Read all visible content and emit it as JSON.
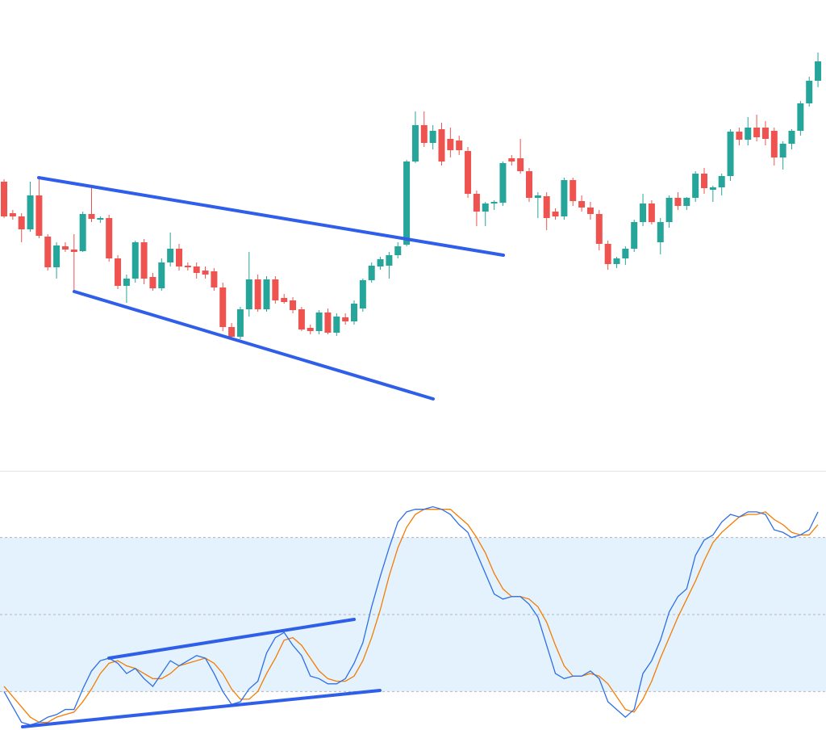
{
  "chart_data": [
    {
      "type": "candlestick",
      "up_color": "#26a69a",
      "down_color": "#ef5350",
      "ylim": [
        17,
        600
      ],
      "open": [
        375,
        336,
        332,
        316,
        358,
        307,
        269,
        295,
        291,
        289,
        335,
        328,
        330,
        280,
        246,
        255,
        300,
        257,
        243,
        275,
        292,
        271,
        270,
        265,
        264,
        244,
        195,
        183,
        217,
        254,
        217,
        254,
        231,
        228,
        217,
        194,
        190,
        213,
        188,
        207,
        202,
        218,
        253,
        270,
        271,
        284,
        297,
        400,
        445,
        423,
        440,
        428,
        426,
        413,
        360,
        338,
        348,
        349,
        404,
        404,
        388,
        355,
        357,
        338,
        332,
        377,
        351,
        343,
        335,
        298,
        273,
        280,
        292,
        325,
        348,
        300,
        325,
        355,
        345,
        355,
        385,
        365,
        368,
        382,
        437,
        427,
        442,
        442,
        438,
        405,
        422,
        438,
        472,
        500
      ],
      "high": [
        378,
        340,
        336,
        375,
        382,
        310,
        300,
        300,
        310,
        338,
        368,
        332,
        334,
        284,
        260,
        302,
        304,
        262,
        280,
        312,
        298,
        275,
        275,
        270,
        268,
        250,
        200,
        220,
        288,
        260,
        258,
        258,
        236,
        232,
        220,
        198,
        216,
        218,
        212,
        212,
        228,
        255,
        275,
        282,
        288,
        300,
        402,
        462,
        462,
        445,
        448,
        442,
        432,
        418,
        364,
        350,
        352,
        400,
        408,
        428,
        392,
        362,
        362,
        342,
        380,
        380,
        358,
        350,
        340,
        302,
        282,
        295,
        328,
        360,
        352,
        330,
        358,
        362,
        356,
        388,
        392,
        370,
        385,
        440,
        442,
        455,
        458,
        450,
        442,
        425,
        440,
        475,
        505,
        535
      ],
      "low": [
        330,
        328,
        300,
        313,
        305,
        265,
        255,
        288,
        240,
        288,
        325,
        324,
        276,
        242,
        225,
        250,
        248,
        240,
        240,
        270,
        265,
        265,
        255,
        255,
        240,
        190,
        180,
        180,
        208,
        214,
        214,
        224,
        224,
        212,
        190,
        186,
        186,
        186,
        184,
        198,
        198,
        214,
        250,
        266,
        255,
        280,
        295,
        398,
        418,
        415,
        395,
        405,
        408,
        355,
        320,
        320,
        340,
        345,
        395,
        385,
        350,
        330,
        315,
        328,
        328,
        345,
        338,
        328,
        290,
        266,
        268,
        272,
        288,
        320,
        322,
        285,
        318,
        340,
        340,
        350,
        360,
        350,
        358,
        376,
        420,
        420,
        425,
        420,
        395,
        390,
        415,
        432,
        468,
        492
      ],
      "close": [
        332,
        332,
        316,
        358,
        308,
        269,
        296,
        291,
        288,
        335,
        329,
        330,
        280,
        246,
        255,
        300,
        255,
        243,
        275,
        292,
        270,
        269,
        262,
        260,
        244,
        195,
        183,
        217,
        254,
        217,
        254,
        228,
        226,
        216,
        192,
        190,
        213,
        188,
        208,
        202,
        224,
        253,
        271,
        279,
        284,
        295,
        400,
        445,
        423,
        438,
        400,
        414,
        414,
        360,
        338,
        348,
        350,
        398,
        400,
        388,
        355,
        358,
        330,
        332,
        377,
        351,
        343,
        335,
        298,
        273,
        280,
        292,
        325,
        348,
        325,
        325,
        355,
        345,
        355,
        385,
        367,
        368,
        382,
        437,
        427,
        442,
        430,
        428,
        405,
        422,
        438,
        472,
        500,
        524
      ]
    },
    {
      "type": "line",
      "ylim": [
        5,
        106
      ],
      "band": [
        20,
        80
      ],
      "band_color": "#e3f2fd",
      "levels": [
        20,
        50,
        80
      ],
      "series": [
        {
          "color": "#2f6fe4",
          "values": [
            20,
            14,
            8,
            7,
            8,
            10,
            11,
            13,
            13,
            21,
            28,
            32,
            33,
            31,
            27,
            29,
            25,
            22,
            27,
            32,
            30,
            32,
            34,
            33,
            27,
            20,
            15,
            16,
            21,
            24,
            35,
            41,
            43,
            38,
            34,
            26,
            25,
            23,
            23,
            25,
            31,
            39,
            53,
            65,
            76,
            86,
            90,
            91,
            91,
            92,
            91,
            89,
            85,
            82,
            74,
            66,
            58,
            56,
            57,
            57,
            54,
            49,
            38,
            27,
            25,
            26,
            26,
            28,
            25,
            16,
            13,
            10,
            13,
            27,
            32,
            40,
            51,
            57,
            60,
            73,
            79,
            81,
            86,
            89,
            88,
            90,
            90,
            89,
            83,
            82,
            80,
            81,
            83,
            90
          ]
        },
        {
          "color": "#f57c00",
          "values": [
            22,
            18,
            14,
            10,
            8,
            8,
            10,
            11,
            12,
            16,
            21,
            27,
            31,
            32,
            30,
            29,
            27,
            25,
            25,
            27,
            30,
            31,
            32,
            33,
            31,
            27,
            21,
            17,
            17,
            20,
            27,
            33,
            40,
            41,
            38,
            33,
            28,
            25,
            24,
            24,
            26,
            32,
            41,
            52,
            65,
            76,
            84,
            89,
            91,
            91,
            91,
            91,
            88,
            85,
            80,
            74,
            66,
            60,
            57,
            57,
            56,
            53,
            47,
            38,
            30,
            26,
            26,
            27,
            26,
            23,
            18,
            13,
            12,
            17,
            24,
            33,
            41,
            49,
            56,
            63,
            71,
            78,
            82,
            85,
            88,
            89,
            89,
            90,
            87,
            85,
            82,
            81,
            81,
            85
          ]
        }
      ]
    }
  ]
}
